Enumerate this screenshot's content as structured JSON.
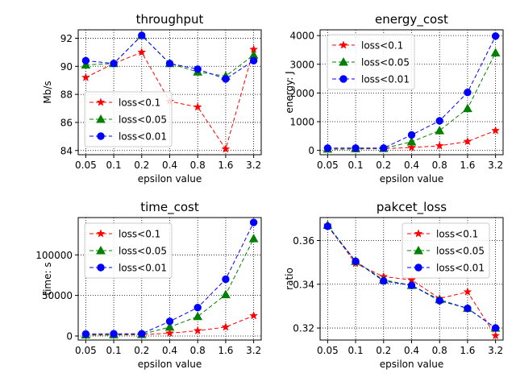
{
  "chart_data": [
    {
      "type": "line",
      "title": "throughput",
      "xlabel": "epsilon value",
      "ylabel": "Mb/s",
      "x": [
        0.05,
        0.1,
        0.2,
        0.4,
        0.8,
        1.6,
        3.2
      ],
      "xticks": [
        "0.05",
        "0.1",
        "0.2",
        "0.4",
        "0.8",
        "1.6",
        "3.2"
      ],
      "xscale": "log",
      "ylim": [
        83.7,
        92.6
      ],
      "yticks": [
        84,
        86,
        88,
        90,
        92
      ],
      "grid": true,
      "legend": "center-left",
      "series": [
        {
          "name": "loss<0.1",
          "color": "#ff0000",
          "marker": "star",
          "values": [
            89.2,
            90.2,
            91.0,
            87.5,
            87.1,
            84.1,
            91.2
          ]
        },
        {
          "name": "loss<0.05",
          "color": "#008000",
          "marker": "triangle",
          "values": [
            90.1,
            90.2,
            92.2,
            90.2,
            89.6,
            89.3,
            90.8
          ]
        },
        {
          "name": "loss<0.01",
          "color": "#0000ff",
          "marker": "circle",
          "values": [
            90.4,
            90.2,
            92.2,
            90.2,
            89.8,
            89.1,
            90.4
          ]
        }
      ]
    },
    {
      "type": "line",
      "title": "energy_cost",
      "xlabel": "epsilon value",
      "ylabel": "energy: J",
      "x": [
        0.05,
        0.1,
        0.2,
        0.4,
        0.8,
        1.6,
        3.2
      ],
      "xticks": [
        "0.05",
        "0.1",
        "0.2",
        "0.4",
        "0.8",
        "1.6",
        "3.2"
      ],
      "xscale": "log",
      "ylim": [
        -150,
        4200
      ],
      "yticks": [
        0,
        1000,
        2000,
        3000,
        4000
      ],
      "grid": true,
      "legend": "upper-left",
      "series": [
        {
          "name": "loss<0.1",
          "color": "#ff0000",
          "marker": "star",
          "values": [
            40,
            50,
            60,
            100,
            160,
            310,
            690
          ]
        },
        {
          "name": "loss<0.05",
          "color": "#008000",
          "marker": "triangle",
          "values": [
            50,
            60,
            70,
            300,
            690,
            1460,
            3400
          ]
        },
        {
          "name": "loss<0.01",
          "color": "#0000ff",
          "marker": "circle",
          "values": [
            80,
            80,
            80,
            540,
            1030,
            2020,
            3980
          ]
        }
      ]
    },
    {
      "type": "line",
      "title": "time_cost",
      "xlabel": "epsilon value",
      "ylabel": "time: s",
      "x": [
        0.05,
        0.1,
        0.2,
        0.4,
        0.8,
        1.6,
        3.2
      ],
      "xticks": [
        "0.05",
        "0.1",
        "0.2",
        "0.4",
        "0.8",
        "1.6",
        "3.2"
      ],
      "xscale": "log",
      "ylim": [
        -5000,
        146000
      ],
      "yticks": [
        0,
        50000,
        100000
      ],
      "grid": true,
      "legend": "upper-left",
      "series": [
        {
          "name": "loss<0.1",
          "color": "#ff0000",
          "marker": "star",
          "values": [
            1000,
            1200,
            1500,
            3500,
            6500,
            11000,
            25000
          ]
        },
        {
          "name": "loss<0.05",
          "color": "#008000",
          "marker": "triangle",
          "values": [
            1500,
            1700,
            2000,
            11000,
            24000,
            51000,
            120000
          ]
        },
        {
          "name": "loss<0.01",
          "color": "#0000ff",
          "marker": "circle",
          "values": [
            2500,
            2700,
            2800,
            18000,
            35000,
            70000,
            140000
          ]
        }
      ]
    },
    {
      "type": "line",
      "title": "pakcet_loss",
      "xlabel": "epsilon value",
      "ylabel": "ratio",
      "x": [
        0.05,
        0.1,
        0.2,
        0.4,
        0.8,
        1.6,
        3.2
      ],
      "xticks": [
        "0.05",
        "0.1",
        "0.2",
        "0.4",
        "0.8",
        "1.6",
        "3.2"
      ],
      "xscale": "log",
      "ylim": [
        0.3145,
        0.3705
      ],
      "yticks": [
        0.32,
        0.34,
        0.36
      ],
      "grid": true,
      "legend": "upper-right",
      "series": [
        {
          "name": "loss<0.1",
          "color": "#ff0000",
          "marker": "star",
          "values": [
            0.367,
            0.3495,
            0.3435,
            0.342,
            0.3335,
            0.3365,
            0.3165
          ]
        },
        {
          "name": "loss<0.05",
          "color": "#008000",
          "marker": "triangle",
          "values": [
            0.367,
            0.3505,
            0.342,
            0.3395,
            0.333,
            0.329,
            0.32
          ]
        },
        {
          "name": "loss<0.01",
          "color": "#0000ff",
          "marker": "circle",
          "values": [
            0.3665,
            0.3505,
            0.3415,
            0.3395,
            0.3325,
            0.329,
            0.32
          ]
        }
      ]
    }
  ]
}
